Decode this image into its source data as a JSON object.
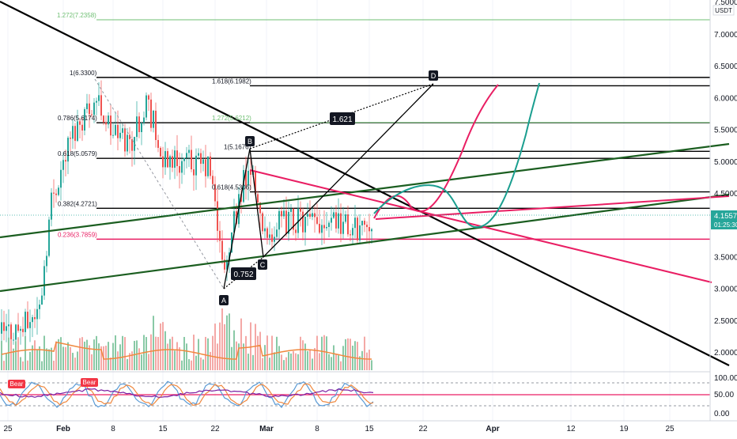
{
  "chart_data": {
    "type": "candlestick",
    "instrument_currency": "USDT",
    "price_axis": {
      "top_label": "7.5000",
      "ticks": [
        "7.0000",
        "6.5000",
        "6.0000",
        "5.5000",
        "5.0000",
        "4.5000",
        "4.0000",
        "3.5000",
        "3.0000",
        "2.5000",
        "2.0000"
      ]
    },
    "last_price": {
      "value": "4.1557",
      "countdown": "01:25:30",
      "color": "#26a69a"
    },
    "x_axis_ticks": [
      "25",
      "Feb",
      "8",
      "15",
      "22",
      "Mar",
      "8",
      "15",
      "22",
      "Apr",
      "12",
      "19",
      "25"
    ],
    "x_axis_bold": [
      "Feb",
      "Mar",
      "Apr"
    ],
    "oscillator_ticks": [
      "100.00",
      "50.00",
      "0.00"
    ],
    "oscillator_labels": [
      "Bear",
      "Bear"
    ],
    "fib_retracement_labels": [
      {
        "level": "1.272(7.2358)",
        "price": 7.2358,
        "color": "#6fbf73"
      },
      {
        "level": "1(6.3300)",
        "price": 6.33,
        "color": "#131722"
      },
      {
        "level": "1.618(6.1982)",
        "price": 6.1982,
        "color": "#131722"
      },
      {
        "level": "0.786(5.6174)",
        "price": 5.6174,
        "color": "#131722"
      },
      {
        "level": "1.272(5.6212)",
        "price": 5.6212,
        "color": "#6fbf73"
      },
      {
        "level": "1(5.1676)",
        "price": 5.1676,
        "color": "#131722"
      },
      {
        "level": "0.618(5.0579)",
        "price": 5.0579,
        "color": "#131722"
      },
      {
        "level": "0.618(4.5306)",
        "price": 4.5306,
        "color": "#131722"
      },
      {
        "level": "0.382(4.2721)",
        "price": 4.2721,
        "color": "#131722"
      },
      {
        "level": "0.236(3.7859)",
        "price": 3.7859,
        "color": "#e91e63"
      }
    ],
    "xabcd_points": [
      {
        "label": "A",
        "price": 3.0
      },
      {
        "label": "B",
        "price": 5.17
      },
      {
        "label": "C",
        "price": 3.55
      },
      {
        "label": "D",
        "price": 6.2
      }
    ],
    "harmonic_ratios": [
      "0.752",
      "1.621"
    ]
  }
}
